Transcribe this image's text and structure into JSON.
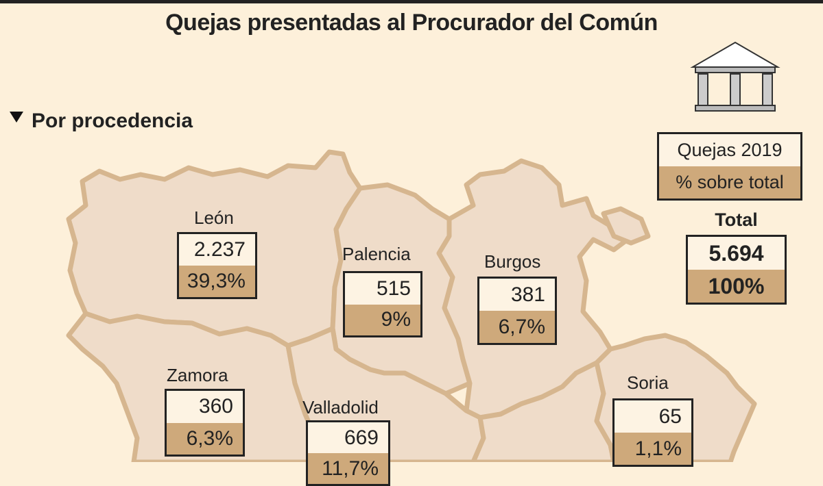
{
  "title": "Quejas presentadas al Procurador del Común",
  "subtitle": "Por procedencia",
  "legend": {
    "count_label": "Quejas 2019",
    "pct_label": "% sobre total"
  },
  "total": {
    "label": "Total",
    "count": "5.694",
    "pct": "100%"
  },
  "icons": [
    "building-icon",
    "triangle-down-icon"
  ],
  "colors": {
    "background": "#fdf0da",
    "region_fill": "#efdcc9",
    "region_border": "#d6b68f",
    "count_fill": "#fdf3e3",
    "pct_fill": "#cea97b"
  },
  "regions": [
    {
      "name": "León",
      "count": "2.237",
      "pct": "39,3%"
    },
    {
      "name": "Palencia",
      "count": "515",
      "pct": "9%"
    },
    {
      "name": "Burgos",
      "count": "381",
      "pct": "6,7%"
    },
    {
      "name": "Zamora",
      "count": "360",
      "pct": "6,3%"
    },
    {
      "name": "Valladolid",
      "count": "669",
      "pct": "11,7%"
    },
    {
      "name": "Soria",
      "count": "65",
      "pct": "1,1%"
    }
  ]
}
